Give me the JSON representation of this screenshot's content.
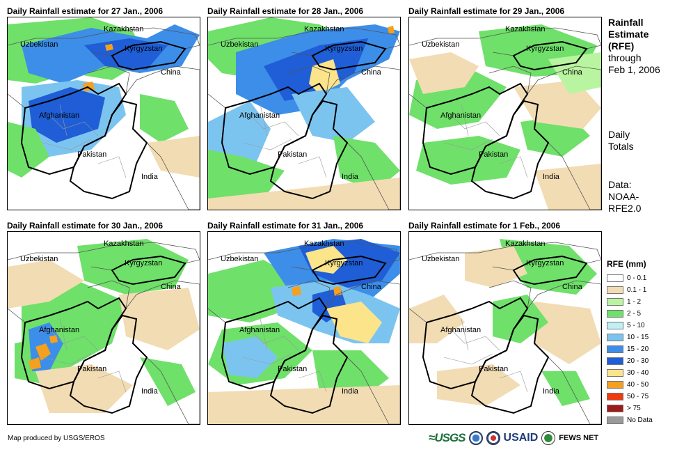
{
  "panels": [
    {
      "title": "Daily Rainfall estimate for 27 Jan., 2006",
      "pattern": "jan27"
    },
    {
      "title": "Daily Rainfall estimate for 28 Jan., 2006",
      "pattern": "jan28"
    },
    {
      "title": "Daily Rainfall estimate for 29 Jan., 2006",
      "pattern": "jan29"
    },
    {
      "title": "Daily Rainfall estimate for 30 Jan., 2006",
      "pattern": "jan30"
    },
    {
      "title": "Daily Rainfall estimate for 31 Jan., 2006",
      "pattern": "jan31"
    },
    {
      "title": "Daily Rainfall estimate for 1 Feb., 2006",
      "pattern": "feb1"
    }
  ],
  "map_labels": {
    "kazakhstan": "Kazakhstan",
    "uzbekistan": "Uzbekistan",
    "kyrgyzstan": "Kyrgyzstan",
    "china": "China",
    "afghanistan": "Afghanistan",
    "pakistan": "Pakistan",
    "india": "India"
  },
  "sidebar": {
    "title_lines": [
      "Rainfall",
      "Estimate",
      "(RFE)"
    ],
    "through_lines": [
      "through",
      "Feb 1, 2006"
    ],
    "totals_lines": [
      "Daily",
      "Totals"
    ],
    "data_lines": [
      "Data:",
      "NOAA-",
      "RFE2.0"
    ]
  },
  "legend": {
    "title": "RFE (mm)",
    "items": [
      {
        "label": "0 - 0.1",
        "color": "#ffffff"
      },
      {
        "label": "0.1 - 1",
        "color": "#f2dcb4"
      },
      {
        "label": "1 - 2",
        "color": "#b9f5a0"
      },
      {
        "label": "2 - 5",
        "color": "#6fe06a"
      },
      {
        "label": "5 - 10",
        "color": "#bff0f5"
      },
      {
        "label": "10 - 15",
        "color": "#7cc4f0"
      },
      {
        "label": "15 - 20",
        "color": "#3d8ee8"
      },
      {
        "label": "20 - 30",
        "color": "#1f5ed6"
      },
      {
        "label": "30 - 40",
        "color": "#fbe48a"
      },
      {
        "label": "40 - 50",
        "color": "#f5a01e"
      },
      {
        "label": "50 - 75",
        "color": "#ef3a10"
      },
      {
        "label": "> 75",
        "color": "#9e1b1b"
      },
      {
        "label": "No Data",
        "color": "#9a9a9a"
      }
    ]
  },
  "footer": {
    "credit": "Map produced by USGS/EROS",
    "logo_usgs": "≈USGS",
    "logo_usaid": "USAID",
    "logo_fews": "FEWS NET"
  }
}
